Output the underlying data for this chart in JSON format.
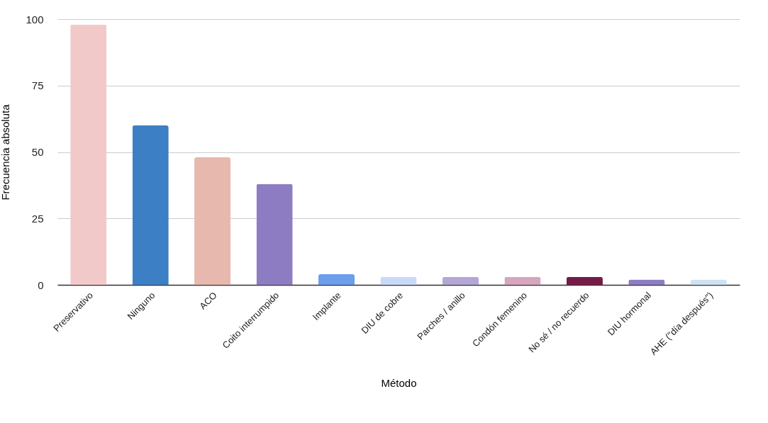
{
  "chart_data": {
    "type": "bar",
    "xlabel": "Método",
    "ylabel": "Frecuencia absoluta",
    "categories": [
      "Preservativo",
      "Ninguno",
      "ACO",
      "Coito interrumpido",
      "Implante",
      "DIU de cobre",
      "Parches / anillo",
      "Condón femenino",
      "No sé / no recuerdo",
      "DIU hormonal",
      "AHE (\"día después\")"
    ],
    "values": [
      98,
      60,
      48,
      38,
      4,
      3,
      3,
      3,
      3,
      2,
      2
    ],
    "colors": [
      "#f2c9c9",
      "#3d7fc4",
      "#e6b8ae",
      "#8e7cc3",
      "#6d9eeb",
      "#c9daf8",
      "#b4a7d6",
      "#d5a6bd",
      "#741b47",
      "#8e7cc3",
      "#cfe2f3"
    ],
    "ylim": [
      0,
      100
    ],
    "yticks": [
      0,
      25,
      50,
      75,
      100
    ],
    "grid": "y"
  }
}
